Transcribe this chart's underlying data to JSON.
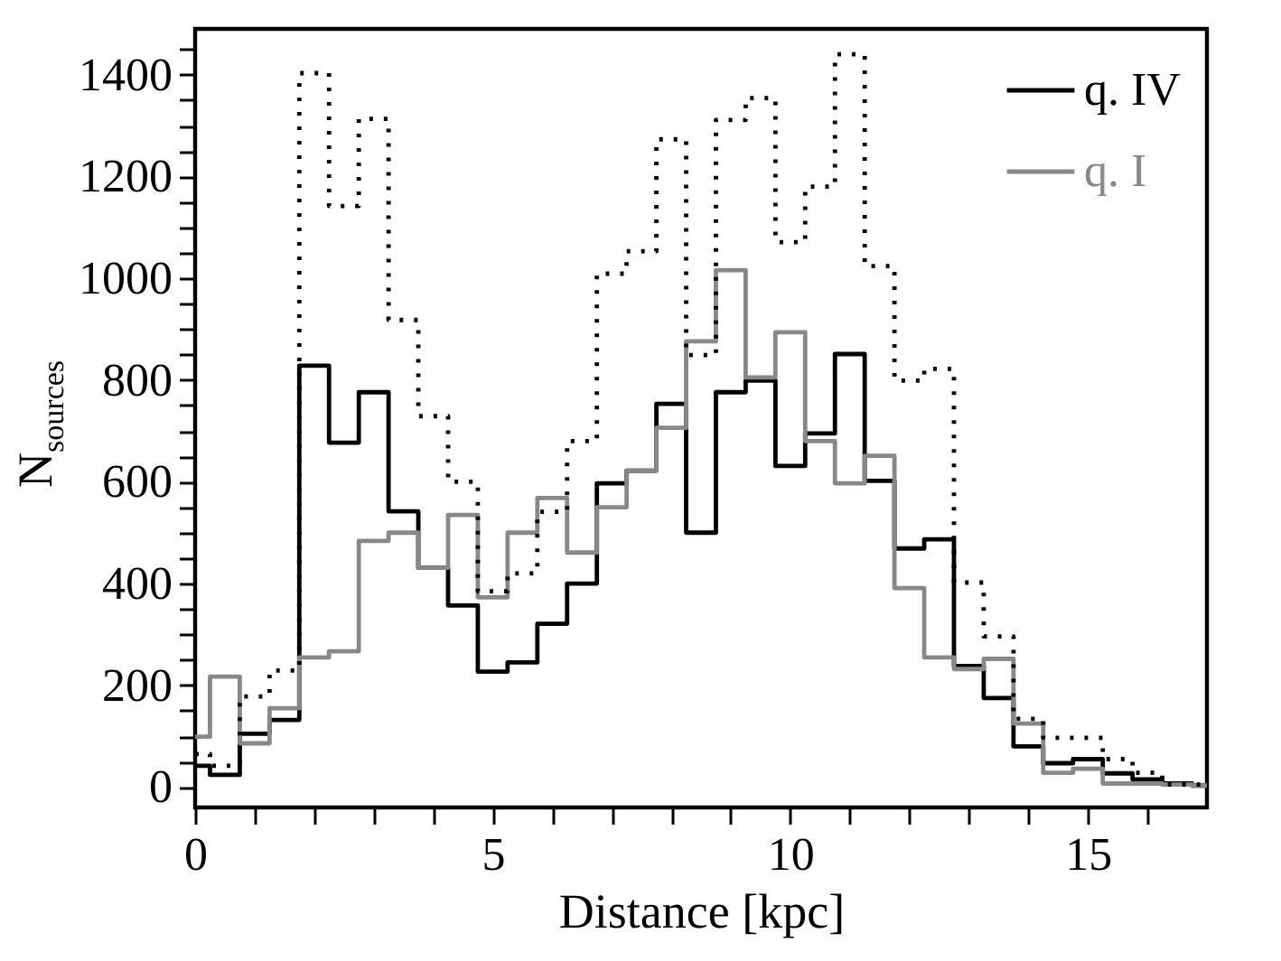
{
  "chart_data": {
    "type": "histogram",
    "xlabel": "Distance [kpc]",
    "ylabel": "N$_{sources}$",
    "legend": "top right",
    "grid": false,
    "bins": [
      0,
      0.25,
      0.75,
      1.25,
      1.75,
      2.25,
      2.75,
      3.25,
      3.75,
      4.25,
      4.75,
      5.25,
      5.75,
      6.25,
      6.75,
      7.25,
      7.75,
      8.25,
      8.75,
      9.25,
      9.75,
      10.25,
      10.75,
      11.25,
      11.75,
      12.25,
      12.75,
      13.25,
      13.75,
      14.25,
      14.75,
      15.25,
      15.75,
      16.25,
      16.75,
      17
    ],
    "xlim": [
      0,
      17
    ],
    "xticks": [
      0,
      {
        "value": 1,
        "label": null
      },
      {
        "value": 2,
        "label": null
      },
      {
        "value": 3,
        "label": null
      },
      {
        "value": 4,
        "label": null
      },
      5,
      {
        "value": 6,
        "label": null
      },
      {
        "value": 7,
        "label": null
      },
      {
        "value": 8,
        "label": null
      },
      {
        "value": 9,
        "label": null
      },
      10,
      {
        "value": 11,
        "label": null
      },
      {
        "value": 12,
        "label": null
      },
      {
        "value": 13,
        "label": null
      },
      {
        "value": 14,
        "label": null
      },
      15,
      {
        "value": 16,
        "label": null
      }
    ],
    "ylim": [
      -40,
      1490
    ],
    "yticks": [
      0,
      {
        "value": 50,
        "label": null
      },
      {
        "value": 100,
        "label": null
      },
      {
        "value": 150,
        "label": null
      },
      200,
      {
        "value": 250,
        "label": null
      },
      {
        "value": 300,
        "label": null
      },
      {
        "value": 350,
        "label": null
      },
      400,
      {
        "value": 450,
        "label": null
      },
      {
        "value": 500,
        "label": null
      },
      {
        "value": 550,
        "label": null
      },
      600,
      {
        "value": 650,
        "label": null
      },
      {
        "value": 700,
        "label": null
      },
      {
        "value": 750,
        "label": null
      },
      800,
      {
        "value": 850,
        "label": null
      },
      {
        "value": 900,
        "label": null
      },
      {
        "value": 950,
        "label": null
      },
      1000,
      {
        "value": 1050,
        "label": null
      },
      {
        "value": 1100,
        "label": null
      },
      {
        "value": 1150,
        "label": null
      },
      1200,
      {
        "value": 1250,
        "label": null
      },
      {
        "value": 1300,
        "label": null
      },
      {
        "value": 1350,
        "label": null
      },
      1400,
      {
        "value": 1450,
        "label": null
      }
    ],
    "series": [
      {
        "name": "q. IV",
        "color": "#000000",
        "line_style": "solid",
        "values": [
          42,
          24,
          105,
          132,
          828,
          677,
          776,
          542,
          431,
          357,
          227,
          245,
          321,
          400,
          597,
          622,
          753,
          500,
          776,
          799,
          631,
          695,
          851,
          602,
          469,
          487,
          238,
          175,
          80,
          47,
          55,
          27,
          15,
          7,
          3
        ]
      },
      {
        "name": "q. I",
        "color": "#888888",
        "line_style": "solid",
        "values": [
          99,
          217,
          86,
          155,
          255,
          267,
          484,
          500,
          431,
          535,
          373,
          500,
          568,
          461,
          550,
          622,
          706,
          876,
          1016,
          805,
          894,
          680,
          597,
          651,
          391,
          255,
          232,
          252,
          125,
          28,
          36,
          7,
          7,
          5,
          3
        ]
      },
      {
        "color": "#000000",
        "line_style": "dotted",
        "values": [
          65,
          42,
          178,
          229,
          1403,
          1142,
          1313,
          918,
          729,
          600,
          385,
          420,
          541,
          680,
          1009,
          1053,
          1273,
          849,
          1311,
          1354,
          1071,
          1180,
          1440,
          1024,
          799,
          822,
          402,
          296,
          134,
          97,
          97,
          55,
          28,
          5,
          5
        ]
      }
    ]
  }
}
